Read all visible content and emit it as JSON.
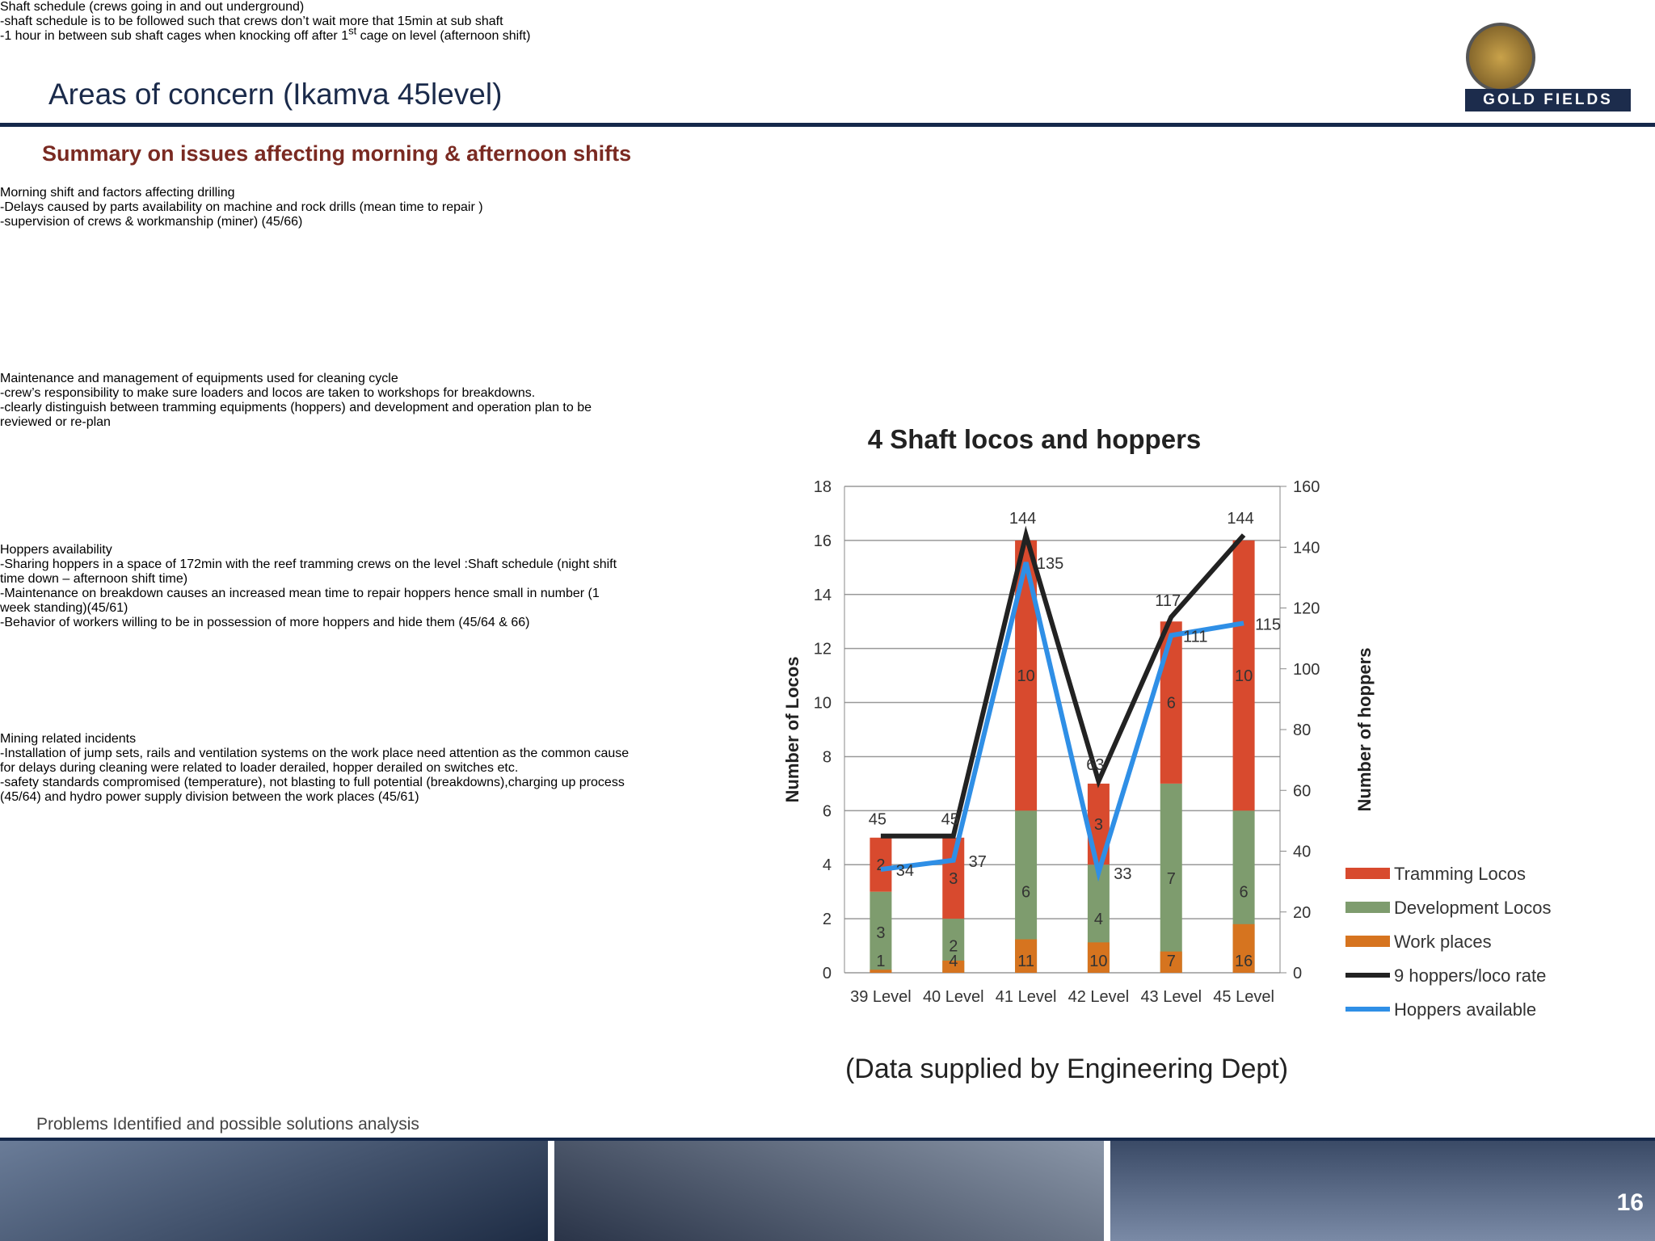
{
  "header": {
    "title": "Areas of concern (Ikamva 45level)",
    "subtitle": "Summary on issues affecting morning & afternoon shifts",
    "logo": "GOLD FIELDS"
  },
  "boxes": [
    {
      "heading": "Shaft schedule (crews going in and out underground)",
      "items": [
        {
          "text": "-shaft schedule is to  be followed such that crews don’t wait more that 15min at sub shaft"
        },
        {
          "text": "-1 hour in between sub shaft cages when knocking off after 1",
          "sup": "st",
          "tail": " cage on level (afternoon shift)"
        }
      ]
    },
    {
      "heading": "Morning shift and factors affecting drilling",
      "items": [
        {
          "text": "-Delays caused by parts availability on machine and rock drills (mean time to repair )"
        },
        {
          "text": "-supervision of crews & workmanship (miner) (45/66)"
        }
      ]
    },
    {
      "heading": "Maintenance and management of equipments used for cleaning cycle",
      "items": [
        {
          "text": "-crew’s responsibility to make sure loaders and locos are taken to workshops for breakdowns."
        },
        {
          "text": "-clearly distinguish between tramming equipments (hoppers) and development and operation plan to be reviewed or re-plan"
        }
      ]
    },
    {
      "heading": "Hoppers availability",
      "items": [
        {
          "text": "-Sharing hoppers in a space of 172min with the reef tramming crews on the level :Shaft schedule (night shift time down – afternoon shift time)"
        },
        {
          "text": "-Maintenance on breakdown causes an increased mean time to repair hoppers hence small in number (1 week standing)(45/61)"
        },
        {
          "text": "-Behavior of workers willing to be in possession of more hoppers and hide them (45/64 & 66)"
        }
      ]
    },
    {
      "heading": "Mining related incidents",
      "items": [
        {
          "text": "-Installation of jump sets, rails and ventilation systems on the work place need attention as the common cause for delays during cleaning were related to loader derailed, hopper derailed on switches etc."
        },
        {
          "text": "-safety standards compromised (temperature), not blasting to full potential (breakdowns),charging up process  (45/64) and hydro power supply division between the work places (45/61)"
        }
      ]
    }
  ],
  "chart_data": {
    "type": "combo",
    "title": "4 Shaft locos and hoppers",
    "categories": [
      "39 Level",
      "40 Level",
      "41 Level",
      "42 Level",
      "43 Level",
      "45 Level"
    ],
    "series": [
      {
        "name": "Tramming Locos",
        "kind": "stacked-bar",
        "color": "#d84a2e",
        "values": [
          2,
          3,
          10,
          3,
          6,
          10
        ]
      },
      {
        "name": "Development Locos",
        "kind": "stacked-bar",
        "color": "#7e9c6e",
        "values": [
          3,
          2,
          6,
          4,
          7,
          6
        ]
      },
      {
        "name": "Work places",
        "kind": "bar",
        "axis": "y2",
        "color": "#d6741f",
        "values": [
          1,
          4,
          11,
          10,
          7,
          16
        ]
      },
      {
        "name": "9 hoppers/loco rate",
        "kind": "line",
        "axis": "y2",
        "color": "#222222",
        "values": [
          45,
          45,
          144,
          63,
          117,
          144
        ]
      },
      {
        "name": "Hoppers available",
        "kind": "line",
        "axis": "y2",
        "color": "#2f8fe6",
        "values": [
          34,
          37,
          135,
          33,
          111,
          115
        ]
      }
    ],
    "ylabel": "Number of Locos",
    "y2label": "Number of hoppers",
    "ylim": [
      0,
      18
    ],
    "yticks": [
      0,
      2,
      4,
      6,
      8,
      10,
      12,
      14,
      16,
      18
    ],
    "y2lim": [
      0,
      160
    ],
    "y2ticks": [
      0,
      20,
      40,
      60,
      80,
      100,
      120,
      140,
      160
    ],
    "legend": "right",
    "caption": "(Data supplied by Engineering Dept)"
  },
  "footer": {
    "text": "Problems Identified and possible solutions analysis",
    "page": "16"
  }
}
